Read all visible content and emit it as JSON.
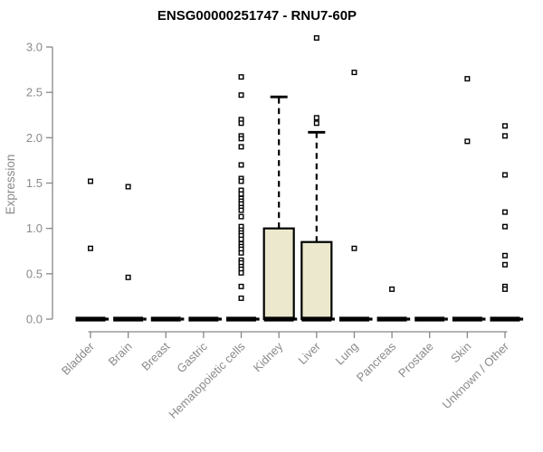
{
  "title": "ENSG00000251747 - RNU7-60P",
  "chart_data": {
    "type": "boxplot",
    "title": "ENSG00000251747 - RNU7-60P",
    "xlabel": "",
    "ylabel": "Expression",
    "ylim": [
      0,
      3.0
    ],
    "yticks": [
      0.0,
      0.5,
      1.0,
      1.5,
      2.0,
      2.5,
      3.0
    ],
    "grid": false,
    "legend": false,
    "categories": [
      "Bladder",
      "Brain",
      "Breast",
      "Gastric",
      "Hematopoietic cells",
      "Kidney",
      "Liver",
      "Lung",
      "Pancreas",
      "Prostate",
      "Skin",
      "Unknown / Other"
    ],
    "boxes": [
      {
        "label": "Bladder",
        "q1": 0,
        "median": 0,
        "q3": 0,
        "whisker_low": 0,
        "whisker_high": 0,
        "outliers": [
          1.52,
          0.78
        ]
      },
      {
        "label": "Brain",
        "q1": 0,
        "median": 0,
        "q3": 0,
        "whisker_low": 0,
        "whisker_high": 0,
        "outliers": [
          1.46,
          0.46
        ]
      },
      {
        "label": "Breast",
        "q1": 0,
        "median": 0,
        "q3": 0,
        "whisker_low": 0,
        "whisker_high": 0,
        "outliers": []
      },
      {
        "label": "Gastric",
        "q1": 0,
        "median": 0,
        "q3": 0,
        "whisker_low": 0,
        "whisker_high": 0,
        "outliers": []
      },
      {
        "label": "Hematopoietic cells",
        "q1": 0,
        "median": 0,
        "q3": 0,
        "whisker_low": 0,
        "whisker_high": 0,
        "outliers": [
          2.67,
          2.47,
          2.2,
          2.16,
          2.02,
          1.99,
          1.9,
          1.7,
          1.55,
          1.52,
          1.42,
          1.38,
          1.33,
          1.3,
          1.27,
          1.23,
          1.2,
          1.13,
          1.02,
          0.98,
          0.95,
          0.92,
          0.88,
          0.83,
          0.8,
          0.77,
          0.73,
          0.65,
          0.62,
          0.58,
          0.55,
          0.51,
          0.36,
          0.23
        ]
      },
      {
        "label": "Kidney",
        "q1": 0,
        "median": 0,
        "q3": 1.0,
        "whisker_low": 0,
        "whisker_high": 2.45,
        "outliers": []
      },
      {
        "label": "Liver",
        "q1": 0,
        "median": 0,
        "q3": 0.85,
        "whisker_low": 0,
        "whisker_high": 2.06,
        "outliers": [
          3.1,
          2.22,
          2.16
        ]
      },
      {
        "label": "Lung",
        "q1": 0,
        "median": 0,
        "q3": 0,
        "whisker_low": 0,
        "whisker_high": 0,
        "outliers": [
          2.72,
          0.78
        ]
      },
      {
        "label": "Pancreas",
        "q1": 0,
        "median": 0,
        "q3": 0,
        "whisker_low": 0,
        "whisker_high": 0,
        "outliers": [
          0.33
        ]
      },
      {
        "label": "Prostate",
        "q1": 0,
        "median": 0,
        "q3": 0,
        "whisker_low": 0,
        "whisker_high": 0,
        "outliers": []
      },
      {
        "label": "Skin",
        "q1": 0,
        "median": 0,
        "q3": 0,
        "whisker_low": 0,
        "whisker_high": 0,
        "outliers": [
          2.65,
          1.96
        ]
      },
      {
        "label": "Unknown / Other",
        "q1": 0,
        "median": 0,
        "q3": 0,
        "whisker_low": 0,
        "whisker_high": 0,
        "outliers": [
          2.13,
          2.02,
          1.59,
          1.18,
          1.02,
          0.7,
          0.6,
          0.36,
          0.33
        ]
      }
    ],
    "colors": {
      "box_fill": "#ece8cd",
      "box_stroke": "#000000",
      "median": "#000000",
      "outlier_stroke": "#000000",
      "axis": "#878787",
      "tick_label": "#8a8a8a",
      "title": "#000000",
      "background": "#ffffff"
    }
  }
}
